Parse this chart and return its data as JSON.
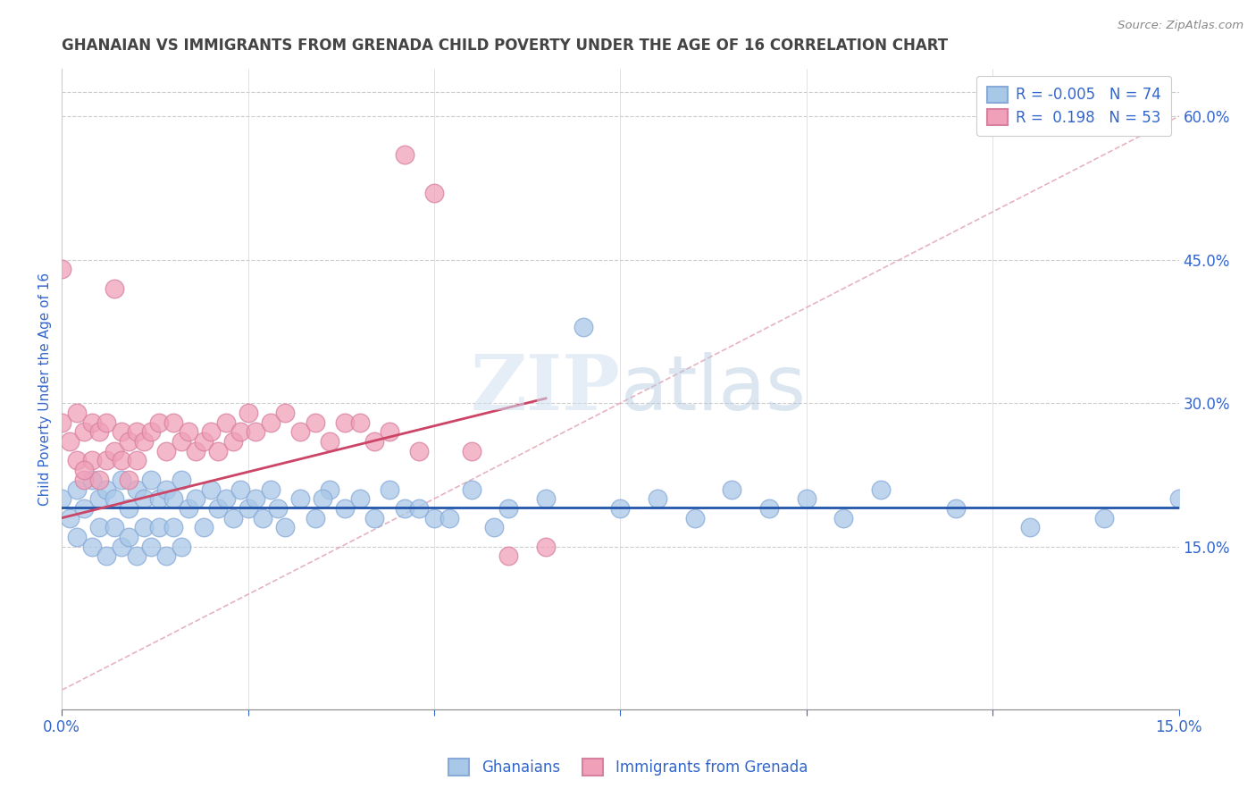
{
  "title": "GHANAIAN VS IMMIGRANTS FROM GRENADA CHILD POVERTY UNDER THE AGE OF 16 CORRELATION CHART",
  "source": "Source: ZipAtlas.com",
  "ylabel": "Child Poverty Under the Age of 16",
  "legend_labels": [
    "Ghanaians",
    "Immigrants from Grenada"
  ],
  "legend_r": [
    -0.005,
    0.198
  ],
  "legend_n": [
    74,
    53
  ],
  "xlim": [
    0.0,
    0.15
  ],
  "ylim": [
    -0.02,
    0.65
  ],
  "xticks": [
    0.0,
    0.025,
    0.05,
    0.075,
    0.1,
    0.125,
    0.15
  ],
  "yticks_right": [
    0.15,
    0.3,
    0.45,
    0.6
  ],
  "ytick_labels_right": [
    "15.0%",
    "30.0%",
    "45.0%",
    "60.0%"
  ],
  "xtick_labels_show": [
    "0.0%",
    "15.0%"
  ],
  "watermark": "ZIPatlas",
  "blue_color": "#a8c8e8",
  "pink_color": "#f0a0b8",
  "blue_line_color": "#2255aa",
  "pink_line_color": "#cc4466",
  "title_color": "#444444",
  "axis_label_color": "#3366cc",
  "tick_color": "#3366cc",
  "ref_line_color": "#e0a0b0",
  "blue_x": [
    0.0,
    0.001,
    0.002,
    0.002,
    0.003,
    0.004,
    0.004,
    0.005,
    0.005,
    0.006,
    0.006,
    0.007,
    0.007,
    0.008,
    0.008,
    0.009,
    0.009,
    0.01,
    0.01,
    0.011,
    0.011,
    0.012,
    0.012,
    0.013,
    0.013,
    0.014,
    0.014,
    0.015,
    0.015,
    0.016,
    0.016,
    0.017,
    0.018,
    0.019,
    0.02,
    0.021,
    0.022,
    0.023,
    0.024,
    0.025,
    0.026,
    0.027,
    0.028,
    0.029,
    0.03,
    0.032,
    0.034,
    0.036,
    0.038,
    0.04,
    0.042,
    0.044,
    0.046,
    0.05,
    0.055,
    0.06,
    0.065,
    0.07,
    0.075,
    0.08,
    0.085,
    0.09,
    0.095,
    0.1,
    0.105,
    0.11,
    0.12,
    0.13,
    0.14,
    0.15,
    0.035,
    0.048,
    0.052,
    0.058
  ],
  "blue_y": [
    0.2,
    0.18,
    0.21,
    0.16,
    0.19,
    0.22,
    0.15,
    0.2,
    0.17,
    0.21,
    0.14,
    0.2,
    0.17,
    0.22,
    0.15,
    0.19,
    0.16,
    0.21,
    0.14,
    0.2,
    0.17,
    0.22,
    0.15,
    0.2,
    0.17,
    0.21,
    0.14,
    0.2,
    0.17,
    0.22,
    0.15,
    0.19,
    0.2,
    0.17,
    0.21,
    0.19,
    0.2,
    0.18,
    0.21,
    0.19,
    0.2,
    0.18,
    0.21,
    0.19,
    0.17,
    0.2,
    0.18,
    0.21,
    0.19,
    0.2,
    0.18,
    0.21,
    0.19,
    0.18,
    0.21,
    0.19,
    0.2,
    0.38,
    0.19,
    0.2,
    0.18,
    0.21,
    0.19,
    0.2,
    0.18,
    0.21,
    0.19,
    0.17,
    0.18,
    0.2,
    0.2,
    0.19,
    0.18,
    0.17
  ],
  "pink_x": [
    0.0,
    0.0,
    0.001,
    0.002,
    0.002,
    0.003,
    0.003,
    0.004,
    0.004,
    0.005,
    0.005,
    0.006,
    0.006,
    0.007,
    0.007,
    0.008,
    0.008,
    0.009,
    0.009,
    0.01,
    0.01,
    0.011,
    0.012,
    0.013,
    0.014,
    0.015,
    0.016,
    0.017,
    0.018,
    0.019,
    0.02,
    0.021,
    0.022,
    0.023,
    0.024,
    0.025,
    0.026,
    0.028,
    0.03,
    0.032,
    0.034,
    0.036,
    0.038,
    0.04,
    0.042,
    0.044,
    0.046,
    0.048,
    0.05,
    0.055,
    0.06,
    0.065,
    0.003
  ],
  "pink_y": [
    0.44,
    0.28,
    0.26,
    0.29,
    0.24,
    0.27,
    0.22,
    0.28,
    0.24,
    0.27,
    0.22,
    0.28,
    0.24,
    0.42,
    0.25,
    0.27,
    0.24,
    0.26,
    0.22,
    0.27,
    0.24,
    0.26,
    0.27,
    0.28,
    0.25,
    0.28,
    0.26,
    0.27,
    0.25,
    0.26,
    0.27,
    0.25,
    0.28,
    0.26,
    0.27,
    0.29,
    0.27,
    0.28,
    0.29,
    0.27,
    0.28,
    0.26,
    0.28,
    0.28,
    0.26,
    0.27,
    0.56,
    0.25,
    0.52,
    0.25,
    0.14,
    0.15,
    0.23
  ],
  "blue_line_y_intercept": 0.198,
  "pink_line_x0": 0.0,
  "pink_line_y0": 0.18,
  "pink_line_x1": 0.065,
  "pink_line_y1": 0.305
}
